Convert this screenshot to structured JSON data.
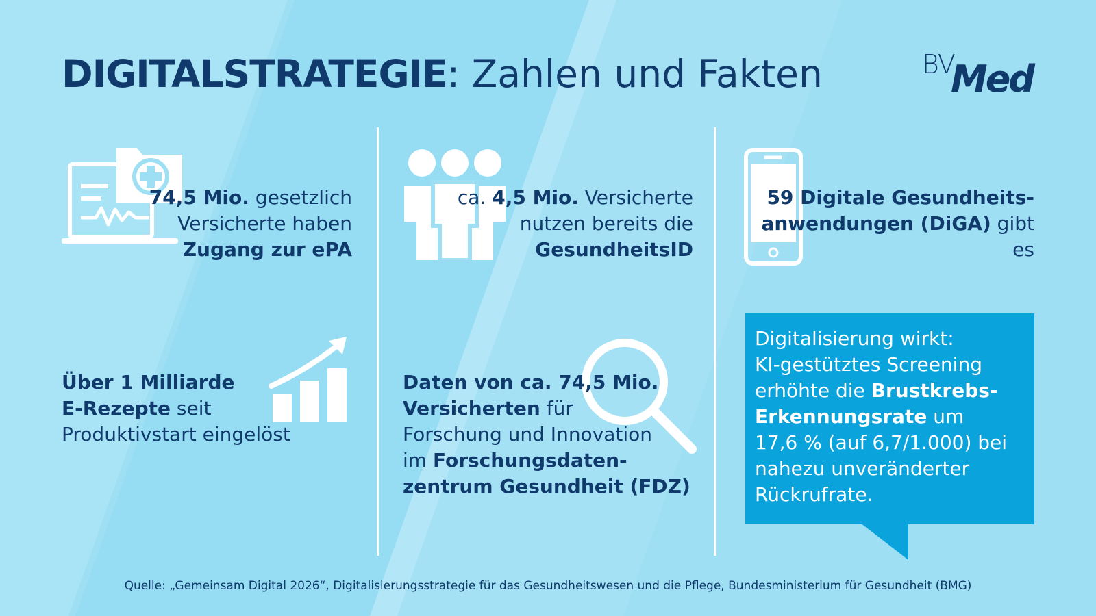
{
  "title": {
    "bold": "DIGITALSTRATEGIE",
    "rest": ": Zahlen und Fakten"
  },
  "logo": {
    "bv": "BV",
    "med": "Med"
  },
  "facts": {
    "epa": {
      "bold1": "74,5 Mio.",
      "text1": " gesetzlich",
      "line2": "Versicherte haben",
      "bold2": "Zugang zur ePA"
    },
    "gesundheitsid": {
      "pre": "ca. ",
      "bold1": "4,5 Mio.",
      "text1": " Versicherte",
      "line2": "nutzen bereits die",
      "bold2": "GesundheitsID"
    },
    "diga": {
      "bold1": "59 Digitale Gesundheits-",
      "bold2": "anwendungen (DiGA)",
      "text2": " gibt es"
    },
    "erezepte": {
      "bold1": "Über 1 Milliarde",
      "bold2": "E-Rezepte",
      "text2": " seit",
      "line3": "Produktivstart eingelöst"
    },
    "fdz": {
      "bold1": "Daten von ca. 74,5 Mio.",
      "bold2": "Versicherten",
      "text2": " für",
      "line3": "Forschung und Innovation",
      "pre4": "im ",
      "bold4": "Forschungsdaten-",
      "bold5": "zentrum Gesundheit (FDZ)"
    }
  },
  "bubble": {
    "line1": "Digitalisierung wirkt:",
    "line2": "KI-gestütztes Screening",
    "line3_pre": "erhöhte die ",
    "line3_bold": "Brustkrebs-",
    "line4_bold": "Erkennungsrate",
    "line4_rest": " um",
    "line5": "17,6 % (auf 6,7/1.000) bei",
    "line6": "nahezu unveränderter",
    "line7": "Rückrufrate."
  },
  "source": "Quelle: „Gemeinsam Digital 2026“, Digitalisierungsstrategie für das Gesundheitswesen und die Pflege, Bundesministerium für Gesundheit (BMG)",
  "icons": {
    "epa": "laptop-medical-folder-icon",
    "people": "people-group-icon",
    "phone": "smartphone-icon",
    "chart": "growth-chart-icon",
    "search": "magnifier-icon"
  },
  "colors": {
    "dark_blue": "#0f3a6b",
    "light_blue": "#9fdff4",
    "bubble_blue": "#0aa3dc",
    "white": "#ffffff"
  }
}
